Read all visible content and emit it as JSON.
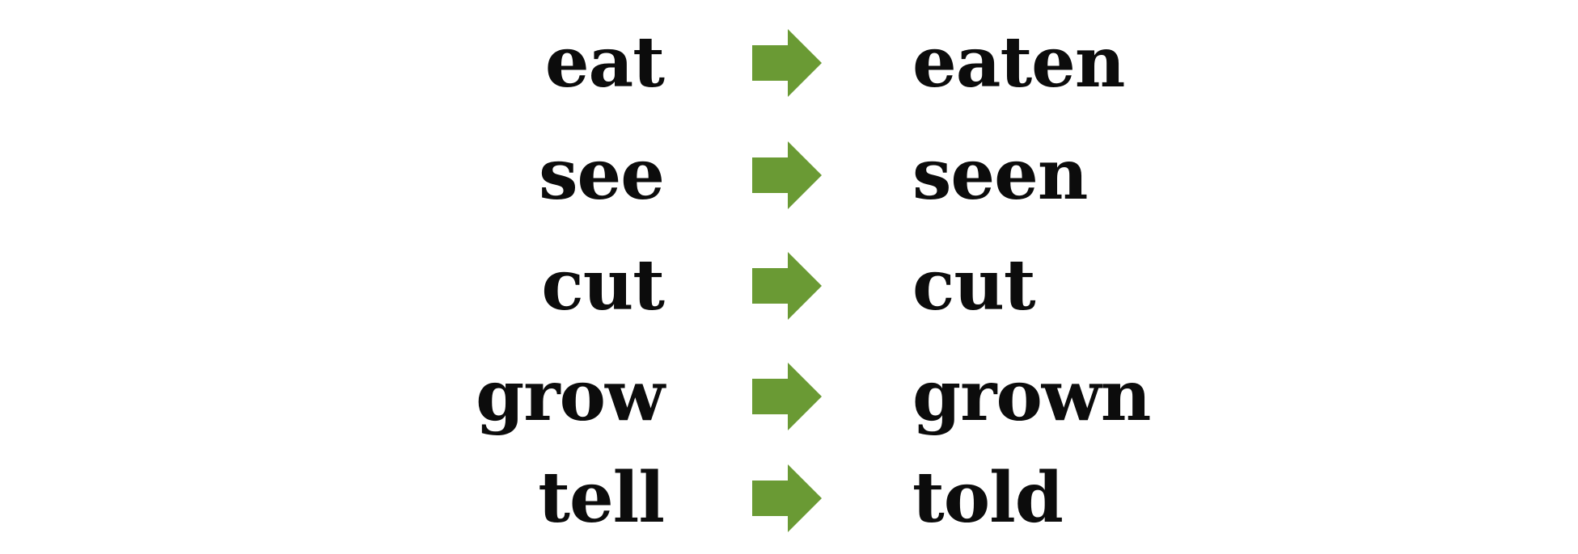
{
  "accent_color": "#6a9a34",
  "text_color": "#0c0c0c",
  "arrow_icon": "right-arrow-icon",
  "pairs": [
    {
      "base": "eat",
      "participle": "eaten"
    },
    {
      "base": "see",
      "participle": "seen"
    },
    {
      "base": "cut",
      "participle": "cut"
    },
    {
      "base": "grow",
      "participle": "grown"
    },
    {
      "base": "tell",
      "participle": "told"
    }
  ]
}
